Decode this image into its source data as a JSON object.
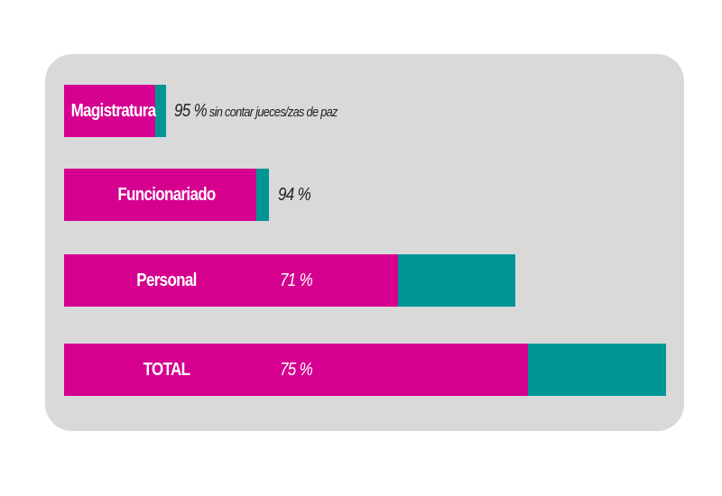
{
  "chart_data": {
    "type": "bar",
    "orientation": "horizontal-stacked",
    "title": "",
    "categories": [
      "Magistratura",
      "Funcionariado",
      "Personal",
      "TOTAL"
    ],
    "values_percent": [
      95,
      94,
      71,
      75
    ],
    "value_labels": [
      "95 %",
      "94 %",
      "71 %",
      "75 %"
    ],
    "notes": [
      "sin contar jueces/zas de paz",
      "",
      "",
      ""
    ],
    "relative_total_size": [
      0.17,
      0.34,
      0.75,
      1.0
    ],
    "colors": {
      "primary": "#d5008f",
      "remainder": "#009696",
      "panel": "#d9d9d9"
    },
    "legend": "none",
    "grid": false
  }
}
